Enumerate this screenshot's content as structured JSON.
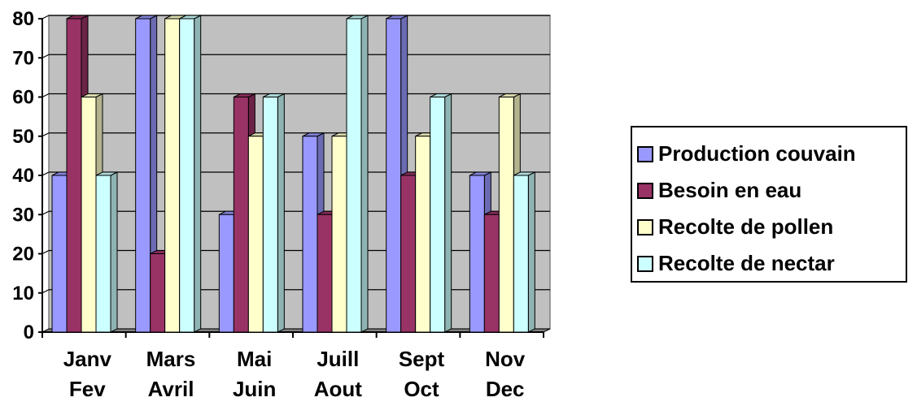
{
  "chart_data": {
    "type": "bar",
    "categories": [
      [
        "Janv",
        "Fev"
      ],
      [
        "Mars",
        "Avril"
      ],
      [
        "Mai",
        "Juin"
      ],
      [
        "Juill",
        "Aout"
      ],
      [
        "Sept",
        "Oct"
      ],
      [
        "Nov",
        "Dec"
      ]
    ],
    "series": [
      {
        "name": "Production couvain",
        "color": "#9999ff",
        "values": [
          40,
          80,
          30,
          50,
          80,
          40
        ]
      },
      {
        "name": "Besoin en eau",
        "color": "#993366",
        "values": [
          80,
          20,
          60,
          30,
          40,
          30
        ]
      },
      {
        "name": "Recolte de pollen",
        "color": "#ffffcc",
        "values": [
          60,
          80,
          50,
          50,
          50,
          60
        ]
      },
      {
        "name": "Recolte de nectar",
        "color": "#ccffff",
        "values": [
          40,
          80,
          60,
          80,
          60,
          40
        ]
      }
    ],
    "ylim": [
      0,
      80
    ],
    "yticks": [
      0,
      10,
      20,
      30,
      40,
      50,
      60,
      70,
      80
    ],
    "grid": true,
    "legend_position": "right",
    "plot_background": "#c0c0c0"
  }
}
